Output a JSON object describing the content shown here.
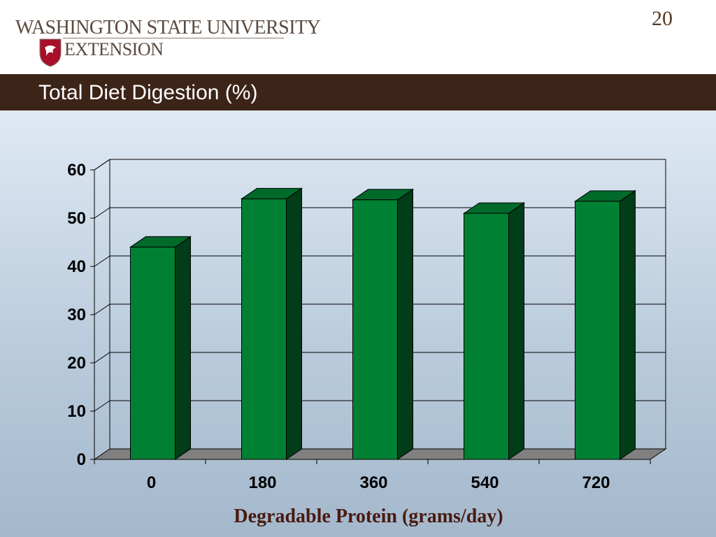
{
  "header": {
    "logo_line1": "WASHINGTON STATE UNIVERSITY",
    "logo_line2": "EXTENSION",
    "page_number": "20"
  },
  "title": "Total Diet Digestion (%)",
  "colors": {
    "bar_front": "#008033",
    "bar_top": "#006a2a",
    "bar_side": "#003d18",
    "title_bar": "#3c2418",
    "floor": "#808080"
  },
  "chart_data": {
    "type": "bar",
    "title": "Total Diet Digestion (%)",
    "categories": [
      "0",
      "180",
      "360",
      "540",
      "720"
    ],
    "values": [
      44,
      54,
      53.8,
      51,
      53.5
    ],
    "xlabel": "Degradable Protein (grams/day)",
    "ylabel": "",
    "ylim": [
      0,
      60
    ],
    "yticks": [
      "0",
      "10",
      "20",
      "30",
      "40",
      "50",
      "60"
    ],
    "grid": true,
    "three_d": true
  }
}
